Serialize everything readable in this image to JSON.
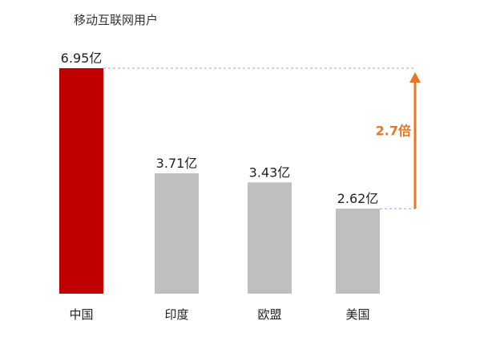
{
  "chart_data": {
    "type": "bar",
    "title": "移动互联网用户",
    "categories": [
      "中国",
      "印度",
      "欧盟",
      "美国"
    ],
    "values": [
      6.95,
      3.71,
      3.43,
      2.62
    ],
    "value_labels": [
      "6.95亿",
      "3.71亿",
      "3.43亿",
      "2.62亿"
    ],
    "ylim": [
      0,
      6.95
    ],
    "grid": false,
    "legend": "none",
    "colors": {
      "bars": [
        "#c00000",
        "#bfbfbf",
        "#bfbfbf",
        "#bfbfbf"
      ],
      "arrow": "#e87722",
      "reference_line": "#8ea9db"
    },
    "annotation": {
      "label": "2.7倍",
      "from_value": 2.62,
      "to_value": 6.95
    }
  }
}
